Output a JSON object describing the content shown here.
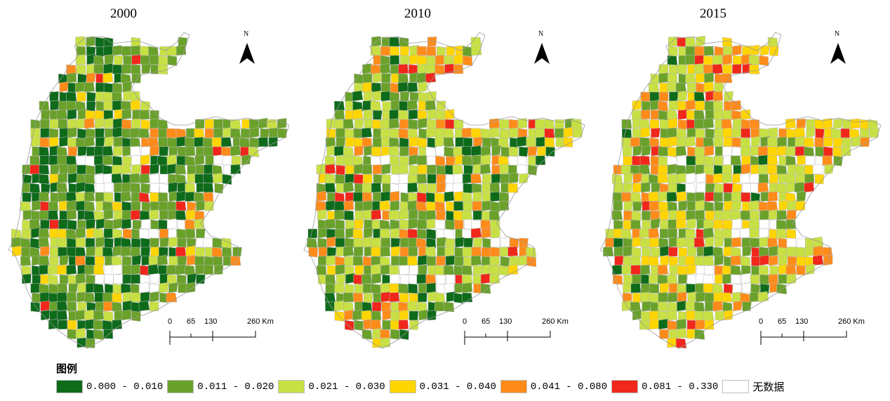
{
  "panels": [
    {
      "year": "2000",
      "weights": [
        0.38,
        0.4,
        0.12,
        0.04,
        0.03,
        0.03
      ]
    },
    {
      "year": "2010",
      "weights": [
        0.16,
        0.34,
        0.26,
        0.09,
        0.1,
        0.05
      ]
    },
    {
      "year": "2015",
      "weights": [
        0.05,
        0.3,
        0.31,
        0.15,
        0.14,
        0.05
      ]
    }
  ],
  "north_label": "N",
  "scale": {
    "ticks": [
      "0",
      "65",
      "130",
      "260 Km"
    ]
  },
  "legend": {
    "title": "图例",
    "items": [
      {
        "label": "0.000 - 0.010",
        "color": "#0e6b1a"
      },
      {
        "label": "0.011 - 0.020",
        "color": "#6aa12a"
      },
      {
        "label": "0.021 - 0.030",
        "color": "#c8e043"
      },
      {
        "label": "0.031 - 0.040",
        "color": "#ffd500"
      },
      {
        "label": "0.041 - 0.080",
        "color": "#ff8c1a"
      },
      {
        "label": "0.081 - 0.330",
        "color": "#f0271a"
      },
      {
        "label": "无数据",
        "color": "#ffffff"
      }
    ]
  }
}
